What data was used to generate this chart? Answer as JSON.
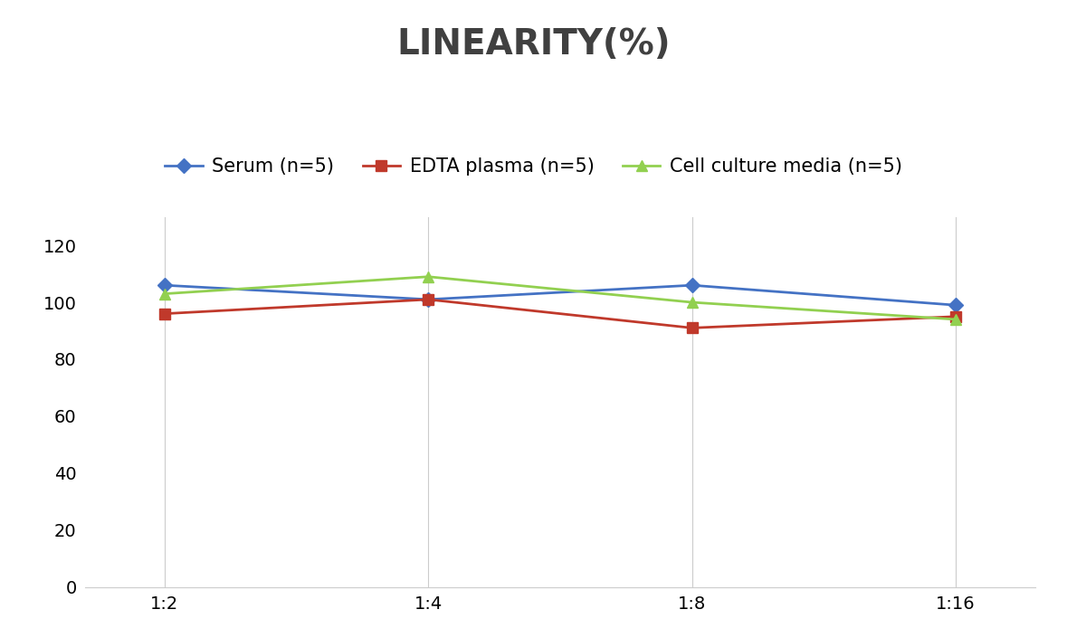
{
  "title": "LINEARITY(%)",
  "title_fontsize": 28,
  "title_fontweight": "bold",
  "title_color": "#404040",
  "x_labels": [
    "1:2",
    "1:4",
    "1:8",
    "1:16"
  ],
  "x_positions": [
    0,
    1,
    2,
    3
  ],
  "series": [
    {
      "label": "Serum (n=5)",
      "values": [
        106,
        101,
        106,
        99
      ],
      "color": "#4472C4",
      "marker": "D",
      "markersize": 8,
      "linewidth": 2
    },
    {
      "label": "EDTA plasma (n=5)",
      "values": [
        96,
        101,
        91,
        95
      ],
      "color": "#C0392B",
      "marker": "s",
      "markersize": 8,
      "linewidth": 2
    },
    {
      "label": "Cell culture media (n=5)",
      "values": [
        103,
        109,
        100,
        94
      ],
      "color": "#92D050",
      "marker": "^",
      "markersize": 9,
      "linewidth": 2
    }
  ],
  "ylim": [
    0,
    130
  ],
  "yticks": [
    0,
    20,
    40,
    60,
    80,
    100,
    120
  ],
  "grid_color": "#CCCCCC",
  "grid_linewidth": 0.8,
  "background_color": "#FFFFFF",
  "legend_fontsize": 15,
  "tick_fontsize": 14,
  "axis_linecolor": "#CCCCCC"
}
